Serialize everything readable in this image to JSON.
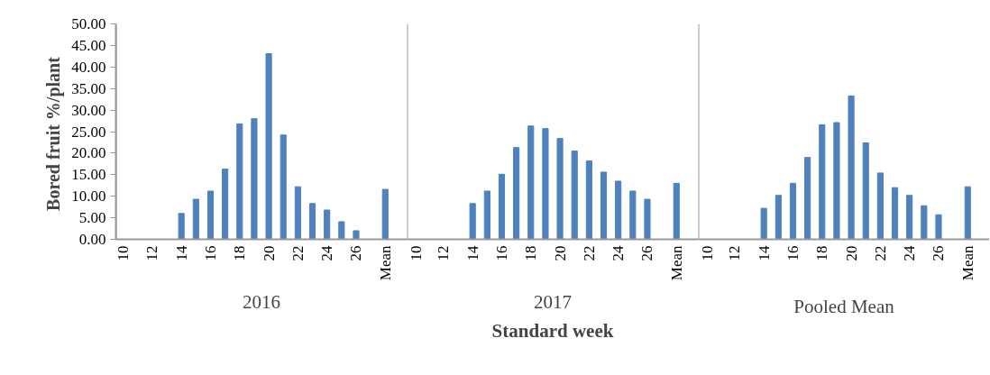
{
  "chart_data": [
    {
      "type": "bar",
      "title": "2016",
      "ylabel": "Bored fruit  %/plant",
      "categories": [
        "10",
        null,
        "12",
        null,
        "14",
        null,
        "16",
        null,
        "18",
        null,
        "20",
        null,
        "22",
        null,
        "24",
        null,
        "26",
        null,
        "Mean",
        null
      ],
      "values": [
        0,
        0,
        0,
        0,
        6.0,
        9.3,
        11.2,
        16.3,
        26.8,
        28.0,
        43.1,
        24.2,
        12.2,
        8.3,
        6.8,
        4.1,
        2.0,
        0,
        11.6,
        null
      ],
      "color": "#4f81bd",
      "ylim": [
        0,
        50
      ],
      "yticks": [
        {
          "value": 0,
          "label": "0.00"
        },
        {
          "value": 5,
          "label": "5.00"
        },
        {
          "value": 10,
          "label": "10.00"
        },
        {
          "value": 15,
          "label": "15.00"
        },
        {
          "value": 20,
          "label": "20.00"
        },
        {
          "value": 25,
          "label": "25.00"
        },
        {
          "value": 30,
          "label": "30.00"
        },
        {
          "value": 35,
          "label": "35.00"
        },
        {
          "value": 40,
          "label": "40.00"
        },
        {
          "value": 45,
          "label": "45.00"
        },
        {
          "value": 50,
          "label": "50.00"
        }
      ],
      "grid": false
    },
    {
      "type": "bar",
      "title": "2017",
      "xlabel": "Standard week",
      "categories": [
        "10",
        null,
        "12",
        null,
        "14",
        null,
        "16",
        null,
        "18",
        null,
        "20",
        null,
        "22",
        null,
        "24",
        null,
        "26",
        null,
        "Mean",
        null
      ],
      "values": [
        0,
        0,
        0,
        0,
        8.3,
        11.2,
        15.1,
        21.3,
        26.3,
        25.7,
        23.4,
        20.5,
        18.2,
        15.6,
        13.5,
        11.2,
        9.3,
        0,
        13.0,
        null
      ],
      "color": "#4f81bd",
      "ylim": [
        0,
        50
      ],
      "tick_labels": "x",
      "grid": false
    },
    {
      "type": "bar",
      "title": "Pooled Mean",
      "categories": [
        "10",
        null,
        "12",
        null,
        "14",
        null,
        "16",
        null,
        "18",
        null,
        "20",
        null,
        "22",
        null,
        "24",
        null,
        "26",
        null,
        "Mean",
        null
      ],
      "values": [
        0,
        0,
        0,
        0,
        7.2,
        10.2,
        13.0,
        19.0,
        26.6,
        27.1,
        33.3,
        22.4,
        15.4,
        12.0,
        10.2,
        7.8,
        5.7,
        0,
        12.2,
        null
      ],
      "color": "#4f81bd",
      "ylim": [
        0,
        50
      ],
      "tick_labels": "x",
      "grid": false
    }
  ]
}
